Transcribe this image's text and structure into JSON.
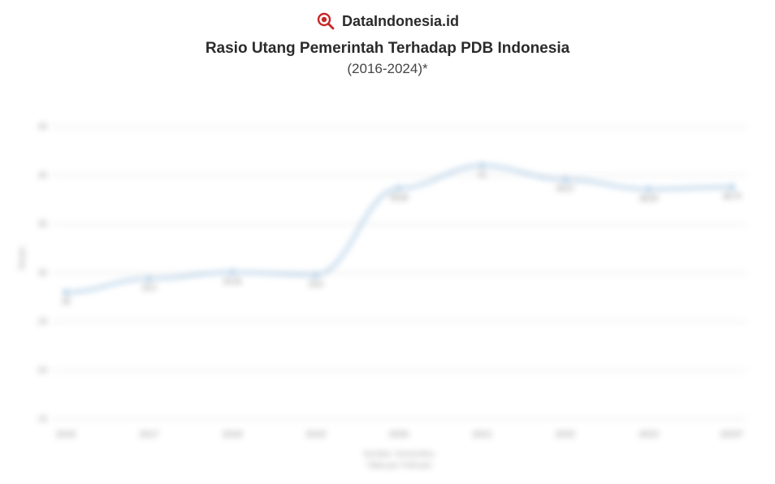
{
  "brand": {
    "name": "DataIndonesia.id",
    "icon_name": "magnifier-icon",
    "icon_color": "#c62828"
  },
  "title": "Rasio Utang Pemerintah Terhadap PDB Indonesia",
  "subtitle": "(2016-2024)*",
  "chart": {
    "type": "line",
    "line_color": "#6fa3cf",
    "point_fill": "#6fa3cf",
    "background_color": "#ffffff",
    "grid_color": "#d8d8d8",
    "ylabel": "Persen",
    "ylim": [
      15,
      48
    ],
    "ytick_step": 5,
    "yticks": [
      15,
      20,
      25,
      30,
      35,
      40,
      45
    ],
    "categories": [
      "2016",
      "2017",
      "2018",
      "2019",
      "2020",
      "2021",
      "2022",
      "2023",
      "2024*"
    ],
    "values": [
      28.0,
      29.4,
      30.06,
      29.8,
      38.68,
      41.0,
      39.57,
      38.59,
      38.79
    ],
    "point_labels": [
      "28",
      "29,4",
      "30,06",
      "29,8",
      "38,68",
      "41",
      "39,57",
      "38,59",
      "38,79"
    ],
    "line_width": 2.2,
    "marker_radius": 4,
    "label_fontsize": 9,
    "tick_fontsize": 11
  },
  "footer": {
    "source": "Sumber: Kemenkeu",
    "notice": "*data per Februari"
  }
}
